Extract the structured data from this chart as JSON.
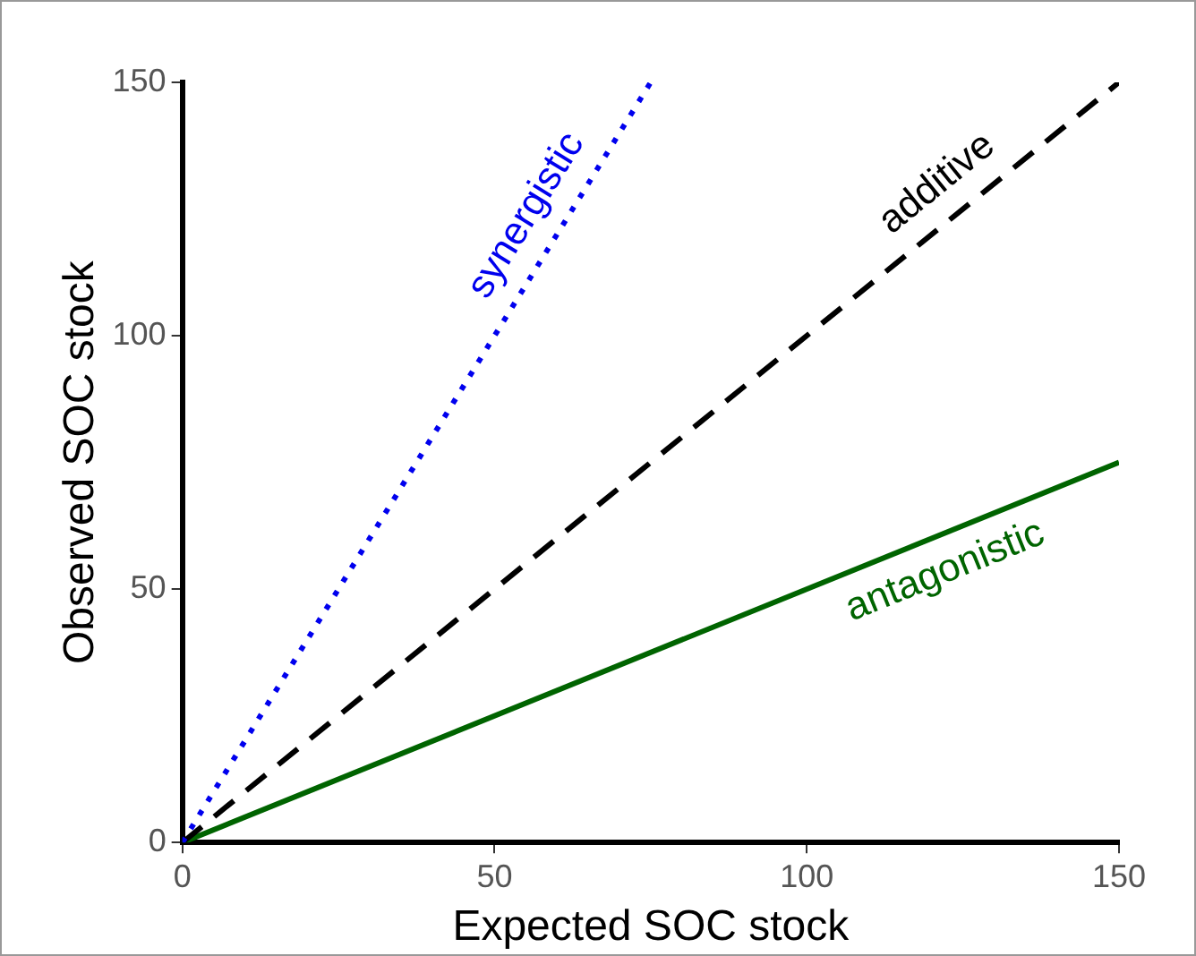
{
  "chart_data": {
    "type": "line",
    "xlabel": "Expected SOC stock",
    "ylabel": "Observed SOC stock",
    "xlim": [
      0,
      150
    ],
    "ylim": [
      0,
      150
    ],
    "xticks": [
      0,
      50,
      100,
      150
    ],
    "yticks": [
      0,
      50,
      100,
      150
    ],
    "grid": false,
    "legend": false,
    "marker": "none",
    "series": [
      {
        "name": "synergistic",
        "color": "#0000ee",
        "x": [
          0,
          75
        ],
        "values": [
          0,
          150
        ],
        "line_style": "dotted"
      },
      {
        "name": "additive",
        "color": "#000000",
        "x": [
          0,
          150
        ],
        "values": [
          0,
          150
        ],
        "line_style": "dashed"
      },
      {
        "name": "antagonistic",
        "color": "#006400",
        "x": [
          0,
          150
        ],
        "values": [
          0,
          75
        ],
        "line_style": "solid"
      }
    ]
  }
}
